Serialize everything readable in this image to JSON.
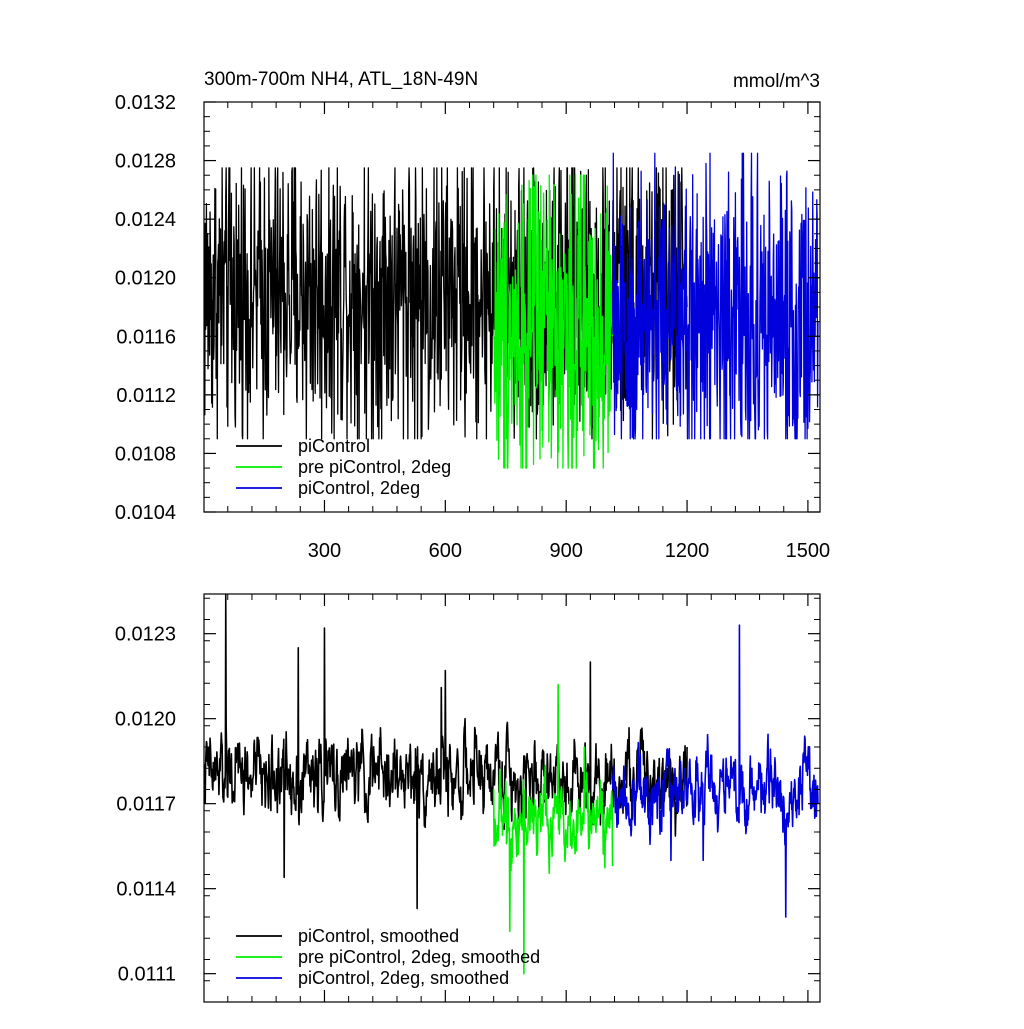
{
  "figure": {
    "title_left": "300m-700m NH4, ATL_18N-49N",
    "title_right": "mmol/m^3"
  },
  "colors": {
    "piControl": "#000000",
    "pre_piControl_2deg": "#00ee00",
    "piControl_2deg": "#0000dd"
  },
  "chart_data": [
    {
      "type": "line",
      "title": "300m-700m NH4, ATL_18N-49N",
      "units_label": "mmol/m^3",
      "xlim": [
        1,
        1530
      ],
      "ylim": [
        0.0104,
        0.0132
      ],
      "x_ticks": [
        300,
        600,
        900,
        1200,
        1500
      ],
      "x_tick_labels": [
        "300",
        "600",
        "900",
        "1200",
        "1500"
      ],
      "y_ticks": [
        0.0104,
        0.0108,
        0.0112,
        0.0116,
        0.012,
        0.0124,
        0.0128,
        0.0132
      ],
      "y_tick_labels": [
        "0.0104",
        "0.0108",
        "0.0112",
        "0.0116",
        "0.0120",
        "0.0124",
        "0.0128",
        "0.0132"
      ],
      "grid": false,
      "legend_position": "bottom-left",
      "series": [
        {
          "name": "piControl",
          "color_key": "piControl",
          "x_range": [
            1,
            1200
          ],
          "anchors_x": [
            1,
            200,
            350,
            510,
            540,
            560,
            760,
            950,
            1030,
            1200
          ],
          "anchors_y": [
            0.01165,
            0.0121,
            0.0125,
            0.01275,
            0.0109,
            0.0113,
            0.0119,
            0.0127,
            0.0121,
            0.0118
          ],
          "mean": 0.0119,
          "min": 0.0109,
          "max": 0.01275
        },
        {
          "name": "pre piControl, 2deg",
          "color_key": "pre_piControl_2deg",
          "x_range": [
            720,
            1015
          ],
          "anchors_x": [
            720,
            740,
            800,
            850,
            945,
            1015
          ],
          "anchors_y": [
            0.0116,
            0.0114,
            0.0107,
            0.0122,
            0.0127,
            0.0116
          ],
          "mean": 0.01165,
          "min": 0.0107,
          "max": 0.0127
        },
        {
          "name": "piControl, 2deg",
          "color_key": "piControl_2deg",
          "x_range": [
            1015,
            1525
          ],
          "anchors_x": [
            1015,
            1100,
            1120,
            1150,
            1320,
            1470,
            1525
          ],
          "anchors_y": [
            0.0119,
            0.0116,
            0.01285,
            0.011,
            0.01258,
            0.0109,
            0.0117
          ],
          "mean": 0.0117,
          "min": 0.0109,
          "max": 0.01285
        }
      ]
    },
    {
      "type": "line",
      "title": "",
      "xlim": [
        1,
        1530
      ],
      "ylim": [
        0.011,
        0.01244
      ],
      "x_ticks": [
        300,
        600,
        900,
        1200,
        1500
      ],
      "x_tick_labels": [
        "",
        "",
        "",
        "",
        ""
      ],
      "y_ticks": [
        0.0111,
        0.0114,
        0.0117,
        0.012,
        0.0123
      ],
      "y_tick_labels": [
        "0.0111",
        "0.0114",
        "0.0117",
        "0.0120",
        "0.0123"
      ],
      "grid": false,
      "legend_position": "bottom-left",
      "series": [
        {
          "name": "piControl, smoothed",
          "color_key": "piControl",
          "x_range": [
            1,
            1200
          ],
          "anchors_x": [
            1,
            55,
            200,
            235,
            300,
            530,
            590,
            600,
            800,
            960,
            1200
          ],
          "anchors_y": [
            0.01182,
            0.01244,
            0.01144,
            0.01225,
            0.01232,
            0.01133,
            0.01211,
            0.01217,
            0.01165,
            0.0122,
            0.0119
          ],
          "mean": 0.0118,
          "min": 0.01133,
          "max": 0.01244
        },
        {
          "name": "pre piControl, 2deg, smoothed",
          "color_key": "pre_piControl_2deg",
          "x_range": [
            720,
            1015
          ],
          "anchors_x": [
            720,
            760,
            795,
            880,
            945,
            1015
          ],
          "anchors_y": [
            0.01175,
            0.01125,
            0.0111,
            0.01212,
            0.0119,
            0.01148
          ],
          "mean": 0.01165,
          "min": 0.0111,
          "max": 0.01212
        },
        {
          "name": "piControl, 2deg, smoothed",
          "color_key": "piControl_2deg",
          "x_range": [
            1015,
            1525
          ],
          "anchors_x": [
            1015,
            1160,
            1240,
            1330,
            1445,
            1515,
            1525
          ],
          "anchors_y": [
            0.0118,
            0.0115,
            0.0115,
            0.01233,
            0.0113,
            0.0118,
            0.0117
          ],
          "mean": 0.01175,
          "min": 0.0113,
          "max": 0.01233
        }
      ]
    }
  ]
}
